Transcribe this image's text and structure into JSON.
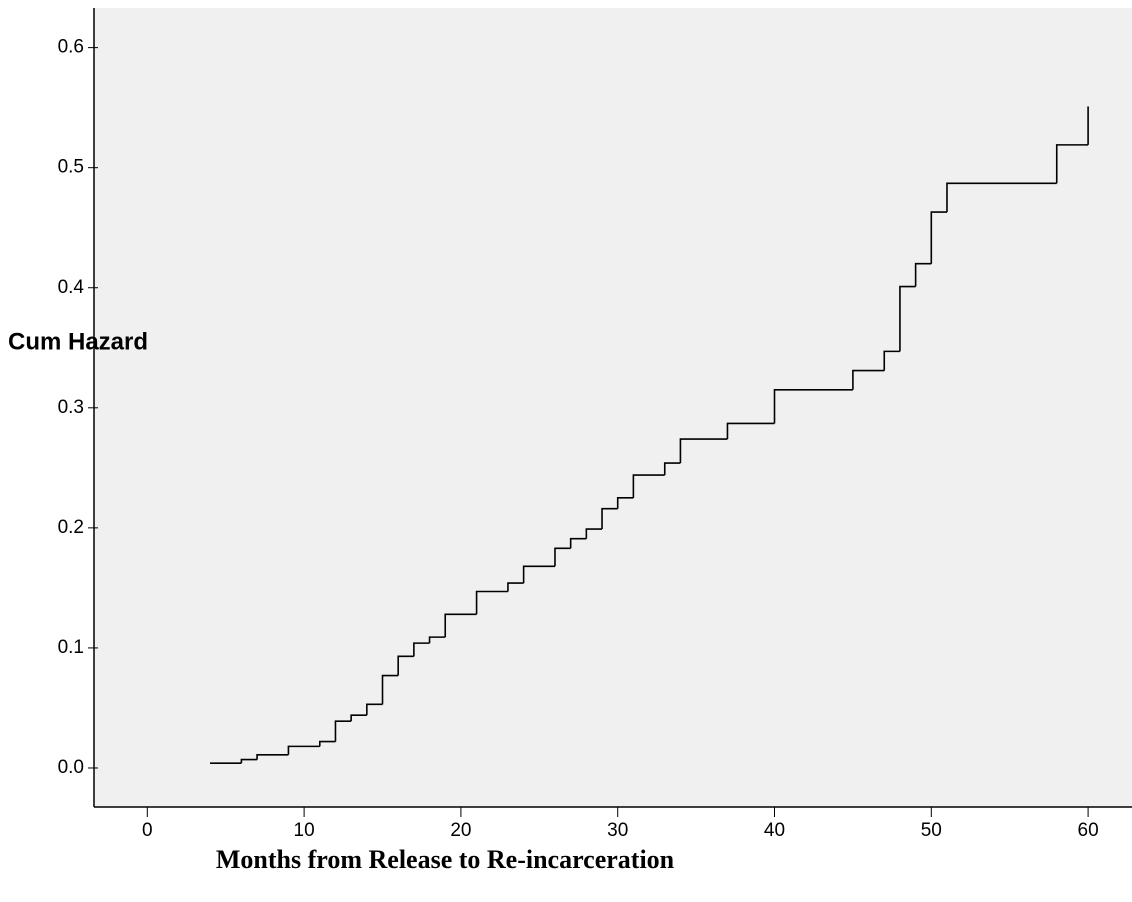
{
  "chart_data": {
    "type": "line",
    "drawstyle": "steps-post",
    "y_label": "Cum Hazard",
    "x_label": "Months from Release to Re-incarceration",
    "x": [
      4,
      6,
      7,
      9,
      11,
      12,
      13,
      14,
      15,
      16,
      17,
      18,
      19,
      21,
      23,
      24,
      26,
      27,
      28,
      29,
      30,
      31,
      33,
      34,
      37,
      40,
      45,
      47,
      48,
      49,
      50,
      51,
      58,
      60
    ],
    "series": [
      {
        "color": "#000000",
        "values": [
          0.004,
          0.007,
          0.011,
          0.018,
          0.022,
          0.039,
          0.044,
          0.053,
          0.077,
          0.093,
          0.104,
          0.109,
          0.128,
          0.147,
          0.154,
          0.168,
          0.183,
          0.191,
          0.199,
          0.216,
          0.225,
          0.244,
          0.254,
          0.274,
          0.287,
          0.315,
          0.331,
          0.347,
          0.401,
          0.42,
          0.463,
          0.487,
          0.519,
          0.551
        ]
      }
    ],
    "xlim": [
      -3.4,
      62.8
    ],
    "ylim": [
      -0.0325,
      0.633
    ],
    "xticks": [
      0,
      10,
      20,
      30,
      40,
      50,
      60
    ],
    "yticks": [
      {
        "value": 0,
        "label": "0.0"
      },
      0.1,
      0.2,
      0.3,
      0.4,
      0.5,
      0.6
    ],
    "background": "#f0f0f0"
  }
}
